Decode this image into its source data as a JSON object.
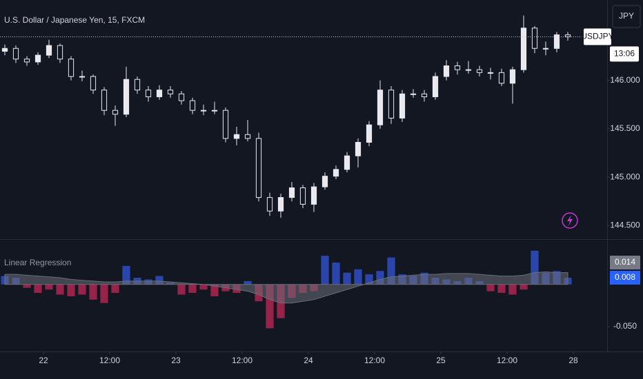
{
  "chart_data": [
    {
      "type": "candlestick",
      "title": "U.S. Dollar / Japanese Yen, 15, FXCM",
      "currency": "JPY",
      "symbol": "USDJPY",
      "countdown": "13:06",
      "color": "#e8eaf0",
      "x": [
        -7,
        -5,
        -3,
        -1,
        1,
        3,
        5,
        7,
        9,
        11,
        13,
        15,
        17,
        19,
        21,
        23,
        25,
        27,
        29,
        31,
        33,
        35,
        37,
        39,
        41,
        43,
        45,
        47,
        49,
        51,
        53,
        55,
        57,
        59,
        61,
        63,
        65,
        67,
        69,
        71,
        73,
        75,
        77,
        79,
        81,
        83,
        85,
        87,
        89,
        91,
        93,
        95
      ],
      "open": [
        146.3,
        146.33,
        146.22,
        146.19,
        146.26,
        146.36,
        146.22,
        146.04,
        146.04,
        145.9,
        145.69,
        145.65,
        146.01,
        145.9,
        145.83,
        145.9,
        145.86,
        145.79,
        145.69,
        145.69,
        145.69,
        145.4,
        145.44,
        145.4,
        144.79,
        144.65,
        144.79,
        144.89,
        144.72,
        144.9,
        145.01,
        145.08,
        145.22,
        145.36,
        145.54,
        145.9,
        145.61,
        145.86,
        145.86,
        145.83,
        146.04,
        146.15,
        146.11,
        146.11,
        146.08,
        146.08,
        145.97,
        146.11,
        146.54,
        146.33,
        146.33,
        146.47
      ],
      "high": [
        146.37,
        146.36,
        146.25,
        146.29,
        146.42,
        146.38,
        146.25,
        146.1,
        146.06,
        145.93,
        145.74,
        146.14,
        146.04,
        145.94,
        145.95,
        145.94,
        145.89,
        145.82,
        145.75,
        145.78,
        145.72,
        145.52,
        145.59,
        145.46,
        144.84,
        144.83,
        144.95,
        144.92,
        144.94,
        145.05,
        145.12,
        145.26,
        145.4,
        145.58,
        146.0,
        145.94,
        145.9,
        145.91,
        145.9,
        146.08,
        146.21,
        146.19,
        146.2,
        146.15,
        146.13,
        146.12,
        146.14,
        146.67,
        146.56,
        146.4,
        146.5,
        146.5
      ],
      "low": [
        146.26,
        146.18,
        146.15,
        146.16,
        146.23,
        146.18,
        146.0,
        145.99,
        145.86,
        145.64,
        145.53,
        145.62,
        145.86,
        145.78,
        145.8,
        145.82,
        145.75,
        145.65,
        145.64,
        145.65,
        145.36,
        145.33,
        145.37,
        144.75,
        144.6,
        144.58,
        144.75,
        144.68,
        144.64,
        144.87,
        144.98,
        145.05,
        145.1,
        145.32,
        145.5,
        145.55,
        145.57,
        145.82,
        145.78,
        145.8,
        146.0,
        146.06,
        146.07,
        146.04,
        146.01,
        145.94,
        145.76,
        146.08,
        146.28,
        146.26,
        146.29,
        146.41
      ],
      "close": [
        146.33,
        146.22,
        146.19,
        146.26,
        146.36,
        146.22,
        146.04,
        146.04,
        145.9,
        145.69,
        145.65,
        146.01,
        145.9,
        145.83,
        145.9,
        145.86,
        145.79,
        145.69,
        145.69,
        145.69,
        145.4,
        145.44,
        145.4,
        144.79,
        144.65,
        144.79,
        144.89,
        144.72,
        144.9,
        145.01,
        145.08,
        145.22,
        145.36,
        145.54,
        145.9,
        145.61,
        145.86,
        145.86,
        145.83,
        146.04,
        146.15,
        146.11,
        146.11,
        146.08,
        146.08,
        145.97,
        146.11,
        146.54,
        146.33,
        146.33,
        146.47,
        146.45
      ],
      "xlim": [
        -7.875,
        102.125
      ],
      "ylim": [
        144.36,
        146.83
      ],
      "yticks": [
        {
          "value": 144.5,
          "label": "144.500"
        },
        {
          "value": 145,
          "label": "145.000"
        },
        {
          "value": 145.5,
          "label": "145.500"
        },
        {
          "value": 146,
          "label": "146.000"
        }
      ]
    },
    {
      "type": "bar",
      "title": "Linear Regression",
      "x": [
        -7,
        -5,
        -3,
        -1,
        1,
        3,
        5,
        7,
        9,
        11,
        13,
        15,
        17,
        19,
        21,
        23,
        25,
        27,
        29,
        31,
        33,
        35,
        37,
        39,
        41,
        43,
        45,
        47,
        49,
        51,
        53,
        55,
        57,
        59,
        61,
        63,
        65,
        67,
        69,
        71,
        73,
        75,
        77,
        79,
        81,
        83,
        85,
        87,
        89,
        91,
        93,
        95
      ],
      "series": [
        {
          "color": "#2f4fc4",
          "negative_color": "#b0264f",
          "values": [
            0.01,
            0.008,
            -0.004,
            -0.01,
            -0.006,
            -0.012,
            -0.014,
            -0.012,
            -0.018,
            -0.022,
            -0.01,
            0.022,
            0.008,
            0.006,
            0.01,
            0.002,
            -0.012,
            -0.01,
            -0.006,
            -0.014,
            -0.008,
            -0.01,
            0.004,
            -0.02,
            -0.052,
            -0.04,
            -0.016,
            -0.01,
            -0.008,
            0.034,
            0.026,
            0.014,
            0.018,
            0.012,
            0.016,
            0.032,
            0.012,
            0.01,
            0.014,
            0.008,
            0.006,
            0.004,
            0.008,
            0.004,
            -0.008,
            -0.01,
            -0.012,
            -0.006,
            0.04,
            0.014,
            0.016,
            0.008
          ]
        },
        {
          "type": "area",
          "color": "#6a6d78",
          "values": [
            0.012,
            0.012,
            0.011,
            0.01,
            0.009,
            0.008,
            0.006,
            0.005,
            0.004,
            0.003,
            0.003,
            0.004,
            0.004,
            0.004,
            0.004,
            0.003,
            0.002,
            0.001,
            0.0,
            -0.002,
            -0.004,
            -0.006,
            -0.008,
            -0.012,
            -0.018,
            -0.022,
            -0.022,
            -0.02,
            -0.018,
            -0.014,
            -0.01,
            -0.006,
            -0.002,
            0.002,
            0.006,
            0.009,
            0.01,
            0.011,
            0.012,
            0.012,
            0.013,
            0.013,
            0.013,
            0.012,
            0.011,
            0.01,
            0.01,
            0.011,
            0.014,
            0.015,
            0.014,
            0.014
          ]
        }
      ],
      "xlim": [
        -7.875,
        102.125
      ],
      "ylim": [
        -0.0795,
        0.053
      ],
      "yticks": [
        {
          "value": -0.05,
          "label": "-0.050"
        }
      ],
      "xticks": [
        {
          "value": 0,
          "label": "22"
        },
        {
          "value": 12,
          "label": "12:00"
        },
        {
          "value": 24,
          "label": "23"
        },
        {
          "value": 36,
          "label": "12:00"
        },
        {
          "value": 48,
          "label": "24"
        },
        {
          "value": 60,
          "label": "12:00"
        },
        {
          "value": 72,
          "label": "25"
        },
        {
          "value": 84,
          "label": "12:00"
        },
        {
          "value": 96,
          "label": "28"
        }
      ]
    }
  ]
}
